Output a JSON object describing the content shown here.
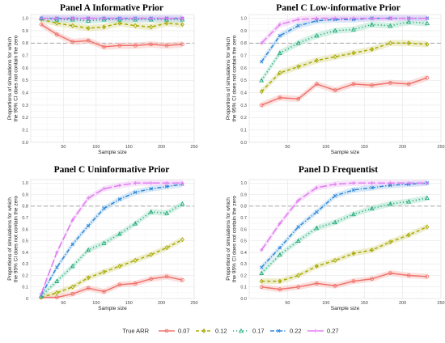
{
  "chart_data": [
    {
      "type": "line",
      "title": "Panel A Informative Prior",
      "xlabel": "Sample size",
      "ylabel_lines": [
        "Proportions of simulations for which",
        "the 95% CI does not contain the zero"
      ],
      "xlim": [
        0,
        250
      ],
      "ylim": [
        0,
        1.03
      ],
      "xticks": [
        50,
        100,
        150,
        200,
        250
      ],
      "yticks": [
        0.0,
        0.1,
        0.2,
        0.3,
        0.4,
        0.5,
        0.6,
        0.7,
        0.8,
        0.9,
        1.0
      ],
      "ytick_labels": [
        "0.0",
        "0.1",
        "0.2",
        "0.3",
        "0.4",
        "0.5",
        "0.6",
        "0.7",
        "0.8",
        "0.9",
        "1.0"
      ],
      "reference_line": 0.8,
      "x": [
        16,
        40,
        64,
        88,
        112,
        136,
        160,
        184,
        208,
        232
      ],
      "series": [
        {
          "name": "0.07",
          "values": [
            0.95,
            0.87,
            0.81,
            0.82,
            0.77,
            0.78,
            0.78,
            0.79,
            0.78,
            0.79
          ]
        },
        {
          "name": "0.12",
          "values": [
            0.99,
            0.96,
            0.94,
            0.92,
            0.93,
            0.96,
            0.94,
            0.93,
            0.96,
            0.95
          ]
        },
        {
          "name": "0.17",
          "values": [
            1.0,
            0.99,
            0.99,
            0.98,
            0.99,
            0.99,
            0.99,
            0.99,
            0.99,
            0.99
          ]
        },
        {
          "name": "0.22",
          "values": [
            1.0,
            1.0,
            1.0,
            1.0,
            1.0,
            1.0,
            1.0,
            1.0,
            1.0,
            1.0
          ]
        },
        {
          "name": "0.27",
          "values": [
            1.0,
            1.0,
            1.0,
            1.0,
            1.0,
            1.0,
            1.0,
            1.0,
            1.0,
            1.0
          ]
        }
      ]
    },
    {
      "type": "line",
      "title": "Panel C Low-informative Prior",
      "xlabel": "Sample size",
      "ylabel_lines": [
        "Proportions of simulations for which",
        "the 95% CI does not contain the zero"
      ],
      "xlim": [
        0,
        250
      ],
      "ylim": [
        0,
        1.03
      ],
      "xticks": [
        50,
        100,
        150,
        200,
        250
      ],
      "yticks": [
        0.0,
        0.1,
        0.2,
        0.3,
        0.4,
        0.5,
        0.6,
        0.7,
        0.8,
        0.9,
        1.0
      ],
      "ytick_labels": [
        "0.0",
        "0.1",
        "0.2",
        "0.3",
        "0.4",
        "0.5",
        "0.6",
        "0.7",
        "0.8",
        "0.9",
        "1.0"
      ],
      "reference_line": 0.8,
      "x": [
        16,
        40,
        64,
        88,
        112,
        136,
        160,
        184,
        208,
        232
      ],
      "series": [
        {
          "name": "0.07",
          "values": [
            0.3,
            0.36,
            0.35,
            0.47,
            0.42,
            0.47,
            0.46,
            0.48,
            0.47,
            0.52
          ]
        },
        {
          "name": "0.12",
          "values": [
            0.41,
            0.56,
            0.61,
            0.66,
            0.69,
            0.72,
            0.75,
            0.8,
            0.8,
            0.79
          ]
        },
        {
          "name": "0.17",
          "values": [
            0.5,
            0.72,
            0.8,
            0.86,
            0.9,
            0.91,
            0.95,
            0.94,
            0.97,
            0.96
          ]
        },
        {
          "name": "0.22",
          "values": [
            0.65,
            0.86,
            0.94,
            0.98,
            0.99,
            0.99,
            1.0,
            1.0,
            1.0,
            1.0
          ]
        },
        {
          "name": "0.27",
          "values": [
            0.8,
            0.95,
            0.99,
            1.0,
            1.0,
            1.0,
            1.0,
            1.0,
            1.0,
            1.0
          ]
        }
      ]
    },
    {
      "type": "line",
      "title": "Panel C Uninformative Prior",
      "xlabel": "Sample size",
      "ylabel_lines": [
        "Proportions of simulations for which",
        "the 95% CI does not contain the zero"
      ],
      "xlim": [
        0,
        250
      ],
      "ylim": [
        0,
        1.03
      ],
      "xticks": [
        50,
        100,
        150,
        200,
        250
      ],
      "yticks": [
        0.0,
        0.1,
        0.2,
        0.3,
        0.4,
        0.5,
        0.6,
        0.7,
        0.8,
        0.9,
        1.0
      ],
      "ytick_labels": [
        "0",
        "0.1",
        "0.2",
        "0.3",
        "0.4",
        "0.5",
        "0.6",
        "0.7",
        "0.8",
        "0.9",
        "1.0"
      ],
      "reference_line": 0.8,
      "x": [
        16,
        40,
        64,
        88,
        112,
        136,
        160,
        184,
        208,
        232
      ],
      "series": [
        {
          "name": "0.07",
          "values": [
            0.01,
            0.01,
            0.04,
            0.09,
            0.06,
            0.12,
            0.13,
            0.17,
            0.19,
            0.16
          ]
        },
        {
          "name": "0.12",
          "values": [
            0.01,
            0.05,
            0.1,
            0.18,
            0.23,
            0.28,
            0.33,
            0.38,
            0.44,
            0.51
          ]
        },
        {
          "name": "0.17",
          "values": [
            0.02,
            0.15,
            0.28,
            0.42,
            0.48,
            0.56,
            0.65,
            0.75,
            0.74,
            0.82
          ]
        },
        {
          "name": "0.22",
          "values": [
            0.03,
            0.27,
            0.47,
            0.63,
            0.78,
            0.86,
            0.92,
            0.95,
            0.97,
            0.99
          ]
        },
        {
          "name": "0.27",
          "values": [
            0.04,
            0.4,
            0.68,
            0.87,
            0.95,
            0.98,
            1.0,
            1.0,
            1.0,
            1.0
          ]
        }
      ]
    },
    {
      "type": "line",
      "title": "Panel D Frequentist",
      "xlabel": "Sample size",
      "ylabel_lines": [
        "Proportions of simulations for which",
        "the 95% CI does not contain the zero"
      ],
      "xlim": [
        0,
        250
      ],
      "ylim": [
        0,
        1.03
      ],
      "xticks": [
        50,
        100,
        150,
        200,
        250
      ],
      "yticks": [
        0.0,
        0.1,
        0.2,
        0.3,
        0.4,
        0.5,
        0.6,
        0.7,
        0.8,
        0.9,
        1.0
      ],
      "ytick_labels": [
        "0.0",
        "0.1",
        "0.2",
        "0.3",
        "0.4",
        "0.5",
        "0.6",
        "0.7",
        "0.8",
        "0.9",
        "1.0"
      ],
      "reference_line": 0.8,
      "x": [
        16,
        40,
        64,
        88,
        112,
        136,
        160,
        184,
        208,
        232
      ],
      "series": [
        {
          "name": "0.07",
          "values": [
            0.1,
            0.08,
            0.1,
            0.13,
            0.11,
            0.15,
            0.17,
            0.22,
            0.2,
            0.19
          ]
        },
        {
          "name": "0.12",
          "values": [
            0.15,
            0.15,
            0.2,
            0.28,
            0.33,
            0.39,
            0.42,
            0.49,
            0.55,
            0.62
          ]
        },
        {
          "name": "0.17",
          "values": [
            0.22,
            0.38,
            0.5,
            0.61,
            0.66,
            0.73,
            0.78,
            0.82,
            0.84,
            0.87
          ]
        },
        {
          "name": "0.22",
          "values": [
            0.27,
            0.44,
            0.62,
            0.75,
            0.89,
            0.94,
            0.96,
            0.98,
            0.99,
            1.0
          ]
        },
        {
          "name": "0.27",
          "values": [
            0.42,
            0.65,
            0.85,
            0.96,
            0.99,
            1.0,
            1.0,
            1.0,
            1.0,
            1.0
          ]
        }
      ]
    }
  ],
  "legend": {
    "title": "True ARR",
    "items": [
      "0.07",
      "0.12",
      "0.17",
      "0.22",
      "0.27"
    ],
    "placement": "bottom"
  },
  "series_styles": [
    {
      "color": "#f0726c",
      "band": "#f8c6c2",
      "dash": "none",
      "marker": "circle"
    },
    {
      "color": "#a8a800",
      "band": "#e2e2a8",
      "dash": "4 3",
      "marker": "diamond"
    },
    {
      "color": "#1faa7a",
      "band": "#b5e6d2",
      "dash": "1.2 2.8",
      "marker": "triangle"
    },
    {
      "color": "#2c86d8",
      "band": "#b8d8f2",
      "dash": "5 2 1.2 2",
      "marker": "cross"
    },
    {
      "color": "#e07cf0",
      "band": "#f2cdf8",
      "dash": "9 3",
      "marker": "plus"
    }
  ],
  "reference_line_color": "#999999"
}
